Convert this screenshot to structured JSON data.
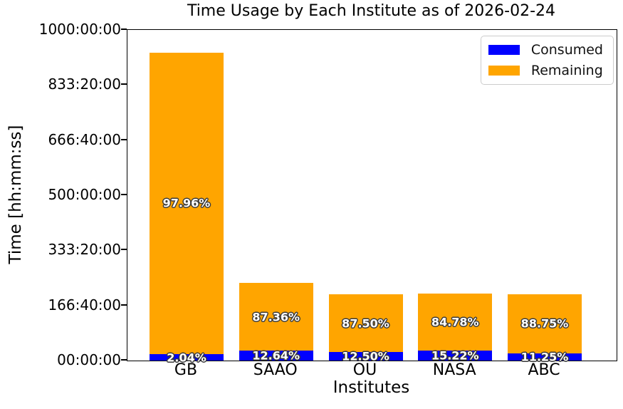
{
  "chart_data": {
    "type": "bar",
    "stacked": true,
    "title": "Time Usage by Each Institute as of 2026-02-24",
    "xlabel": "Institutes",
    "ylabel": "Time [hh:mm:ss]",
    "categories": [
      "GB",
      "SAAO",
      "OU",
      "NASA",
      "ABC"
    ],
    "y_ticks": [
      "00:00:00",
      "166:40:00",
      "333:20:00",
      "500:00:00",
      "666:40:00",
      "833:20:00",
      "1000:00:00"
    ],
    "y_axis_max_hours": 1000,
    "grid": false,
    "totals_hours_estimated": [
      932,
      234,
      200,
      202,
      200
    ],
    "series": [
      {
        "name": "Consumed",
        "color": "#0000ff",
        "percents": [
          2.04,
          12.64,
          12.5,
          15.22,
          11.25
        ],
        "labels": [
          "2.04%",
          "12.64%",
          "12.50%",
          "15.22%",
          "11.25%"
        ]
      },
      {
        "name": "Remaining",
        "color": "#ffa500",
        "percents": [
          97.96,
          87.36,
          87.5,
          84.78,
          88.75
        ],
        "labels": [
          "97.96%",
          "87.36%",
          "87.50%",
          "84.78%",
          "88.75%"
        ]
      }
    ],
    "legend": {
      "position": "upper-right",
      "entries": [
        {
          "label": "Consumed",
          "color": "#0000ff"
        },
        {
          "label": "Remaining",
          "color": "#ffa500"
        }
      ]
    }
  }
}
